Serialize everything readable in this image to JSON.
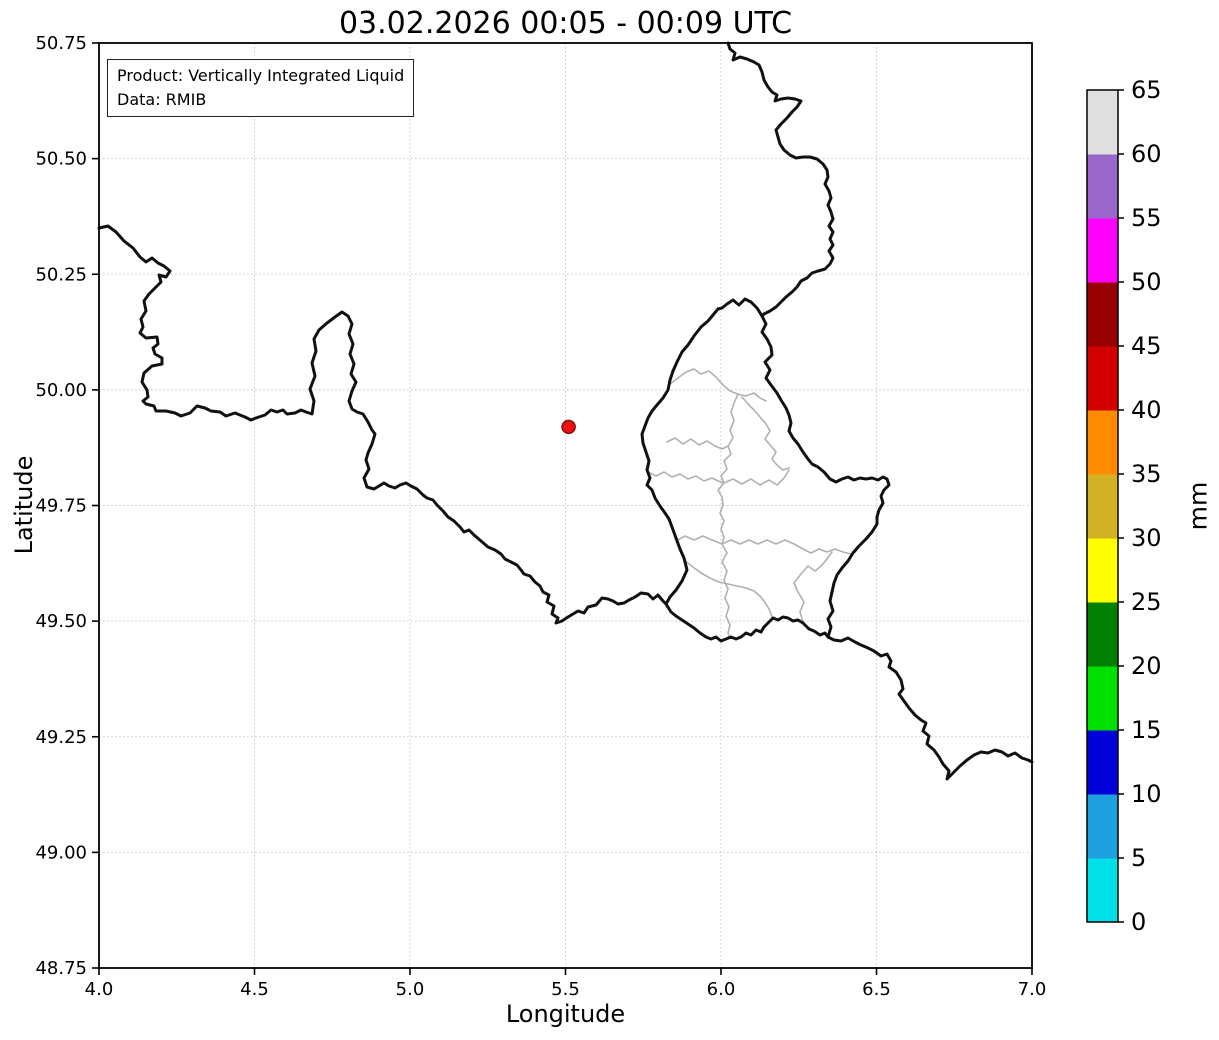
{
  "chart_data": {
    "type": "map",
    "title": "03.02.2026 00:05 - 00:09 UTC",
    "xlabel": "Longitude",
    "ylabel": "Latitude",
    "xlim": [
      4.0,
      7.0
    ],
    "ylim": [
      48.75,
      50.75
    ],
    "xticks": [
      "4.0",
      "4.5",
      "5.0",
      "5.5",
      "6.0",
      "6.5",
      "7.0"
    ],
    "yticks": [
      "50.75",
      "50.50",
      "50.25",
      "50.00",
      "49.75",
      "49.50",
      "49.25",
      "49.00",
      "48.75"
    ],
    "grid": "dotted",
    "annotation_box": [
      "Product: Vertically Integrated Liquid",
      "Data: RMIB"
    ],
    "colorbar": {
      "label": "mm",
      "tick_values": [
        0,
        5,
        10,
        15,
        20,
        25,
        30,
        35,
        40,
        45,
        50,
        55,
        60,
        65
      ],
      "segment_colors_bottom_to_top": [
        "#00e0e8",
        "#1e9fe0",
        "#0000d8",
        "#00e000",
        "#008000",
        "#ffff00",
        "#d2b124",
        "#ff8c00",
        "#d40000",
        "#960000",
        "#ff00ff",
        "#9966cc",
        "#e0e0e0"
      ]
    },
    "marker_points": [
      {
        "lon": 5.51,
        "lat": 49.92,
        "fill": "#ee1111",
        "edge": "#801510",
        "radius_px": 6.5
      }
    ],
    "colors": {
      "country_border": "#111111",
      "admin_border": "#b0b0b0",
      "grid": "#c9c9c9",
      "frame": "#000000"
    },
    "country_borders_px": [
      "99,228 108,226 116,232 124,241 133,248 140,257 146,262 152,258 158,263 164,266 170,271 166,277 159,275 161,282 155,288 149,294 144,301 146,311 141,319 143,327 140,333 146,338 157,337 158,344 153,348 155,354 162,358 162,364 152,366 144,373 142,382 147,390 148,397 143,401 146,404 154,406 156,411 166,411 175,413 181,416 190,413 197,406 205,408 211,411 220,412 226,416 235,413 245,417 251,420 256,418 265,415 271,410 277,412 283,410 287,414 295,413 301,410 306,412 312,414 314,401 310,389 315,376 312,363 316,351 314,339 319,330 327,323 335,317 342,312 348,316 352,324 349,334 353,344 350,354 354,364 351,374 356,382 352,391 349,401 352,409 357,412 363,414 368,422 372,430 375,434 372,444 368,453 366,460 369,469 364,478 367,487 374,489 379,486 384,483 389,486 395,488 400,485 406,483 411,486 417,489 423,495 427,498 433,500 437,505 443,511 448,517 454,521 460,527 464,532 469,530 474,535 481,541 488,547 495,550 501,554 505,559 511,562 517,565 521,570 524,574 530,576 535,582 540,586 543,592 549,595 547,602 554,606 552,614 558,618 556,623 562,621 568,617 573,614 578,611 584,613 588,607 596,605 602,598 608,599 613,601 618,604 624,603 629,600 635,597 641,593 648,594 653,599 658,595 663,601 666,604 671,612 676,616 682,620 688,624 694,628 700,633 706,637 711,639 716,637 721,641 726,639 731,637 736,639 741,637 746,633 751,635 756,630 761,632 764,627 769,622 773,618 778,620 783,617 788,618 793,621 798,620 803,623 809,629 814,631 820,635 825,633 828,637 834,640 841,641 848,638 855,642 861,645 868,648 874,651 881,656 887,654 891,661 889,667 896,672 901,680 903,689 899,694 904,701 909,708 915,715 921,720 926,723 923,731 929,736 927,744 934,750 939,757 943,764 949,771 947,779 954,772 960,766 967,760 974,755 981,752 988,753 995,750 1002,752 1008,756 1015,753 1022,758 1028,760 1032,762",
      "728,43 730,49 735,53 733,60 740,57 747,59 754,62 759,65 762,72 764,80 768,87 772,92 777,95 775,101 781,99 788,98 795,99 801,101 797,107 792,112 787,118 781,124 776,130 778,137 780,144 784,150 790,155 796,158 803,157 810,157 817,159 823,164 827,170 828,177 825,184 829,191 831,198 828,205 831,212 833,219 829,226 833,232 830,239 833,245 829,251 833,258 830,264 825,269 818,271 812,273 807,278 801,281 797,287 792,292 786,297 781,302 776,307 770,311 764,314 762,316",
      "762,316 757,308 751,302 745,299 739,305 733,300 727,304 722,308 718,309",
      "718,309 713,315 708,321 701,327 694,336 688,345 682,352 677,362 673,371 670,380 668,390 663,398 657,405 652,411 648,418 645,426 642,434 643,443 646,452 649,461 647,470 650,478 647,485 652,490 655,498 660,506 665,513 669,519 672,527 676,538 680,549 684,558 687,570 682,581 676,590 670,597 666,604",
      "762,316 766,324 762,332 767,339 771,347 772,355 765,362 770,370 766,378 771,385 777,393 781,400 786,408 789,415 791,423 789,431 793,438 798,444 803,452 808,459 812,464 818,467 824,472 830,479 836,482 842,479 848,477 854,480 860,478 866,479 872,478 878,480 883,477 887,479 889,485 884,490 881,496 883,503 879,510 877,517 877,524 872,532 866,539 859,546 853,553 848,561 842,568 837,575 834,583 832,592 830,601 833,611 828,619 831,627 828,637"
    ],
    "admin_borders_px": [
      "670,384 678,378 686,372 694,369 701,374 709,371 716,377 723,385 730,391 738,394 746,396 754,393 760,398 766,401",
      "738,394 734,403 731,412 734,421 730,430 733,438 728,446 731,454 724,461 727,469 721,476 724,483 718,490 722,497 723,505 720,513 724,521 721,529 724,537 722,544",
      "667,442 675,438 683,444 691,439 699,445 707,441 715,446 722,449 728,446",
      "648,472 656,476 664,472 672,477 680,474 688,479 696,476 704,481 712,478 718,481 724,483",
      "742,397 748,404 754,410 760,417 766,424 770,431 765,439 771,446 776,452 772,459 777,465 783,470 789,468",
      "724,483 733,479 742,484 751,479 760,485 769,480 777,485 784,478 789,470",
      "676,541 685,536 694,540 703,536 712,540 722,544 731,540 740,544 749,540 758,544 767,540 776,544 785,540 794,544 803,549 811,553 819,549 827,552 835,549 843,552 851,554",
      "722,544 727,553 722,562 727,571 724,580 728,589 725,598 729,607 726,616 730,625 728,633 730,638",
      "685,561 693,567 701,573 710,578 719,582 728,584 737,586 746,588 754,591 761,597 766,604 770,611 772,617",
      "803,622 800,612 804,602 798,592 794,583 801,574 808,566 815,571 821,566 827,559 832,552"
    ]
  }
}
